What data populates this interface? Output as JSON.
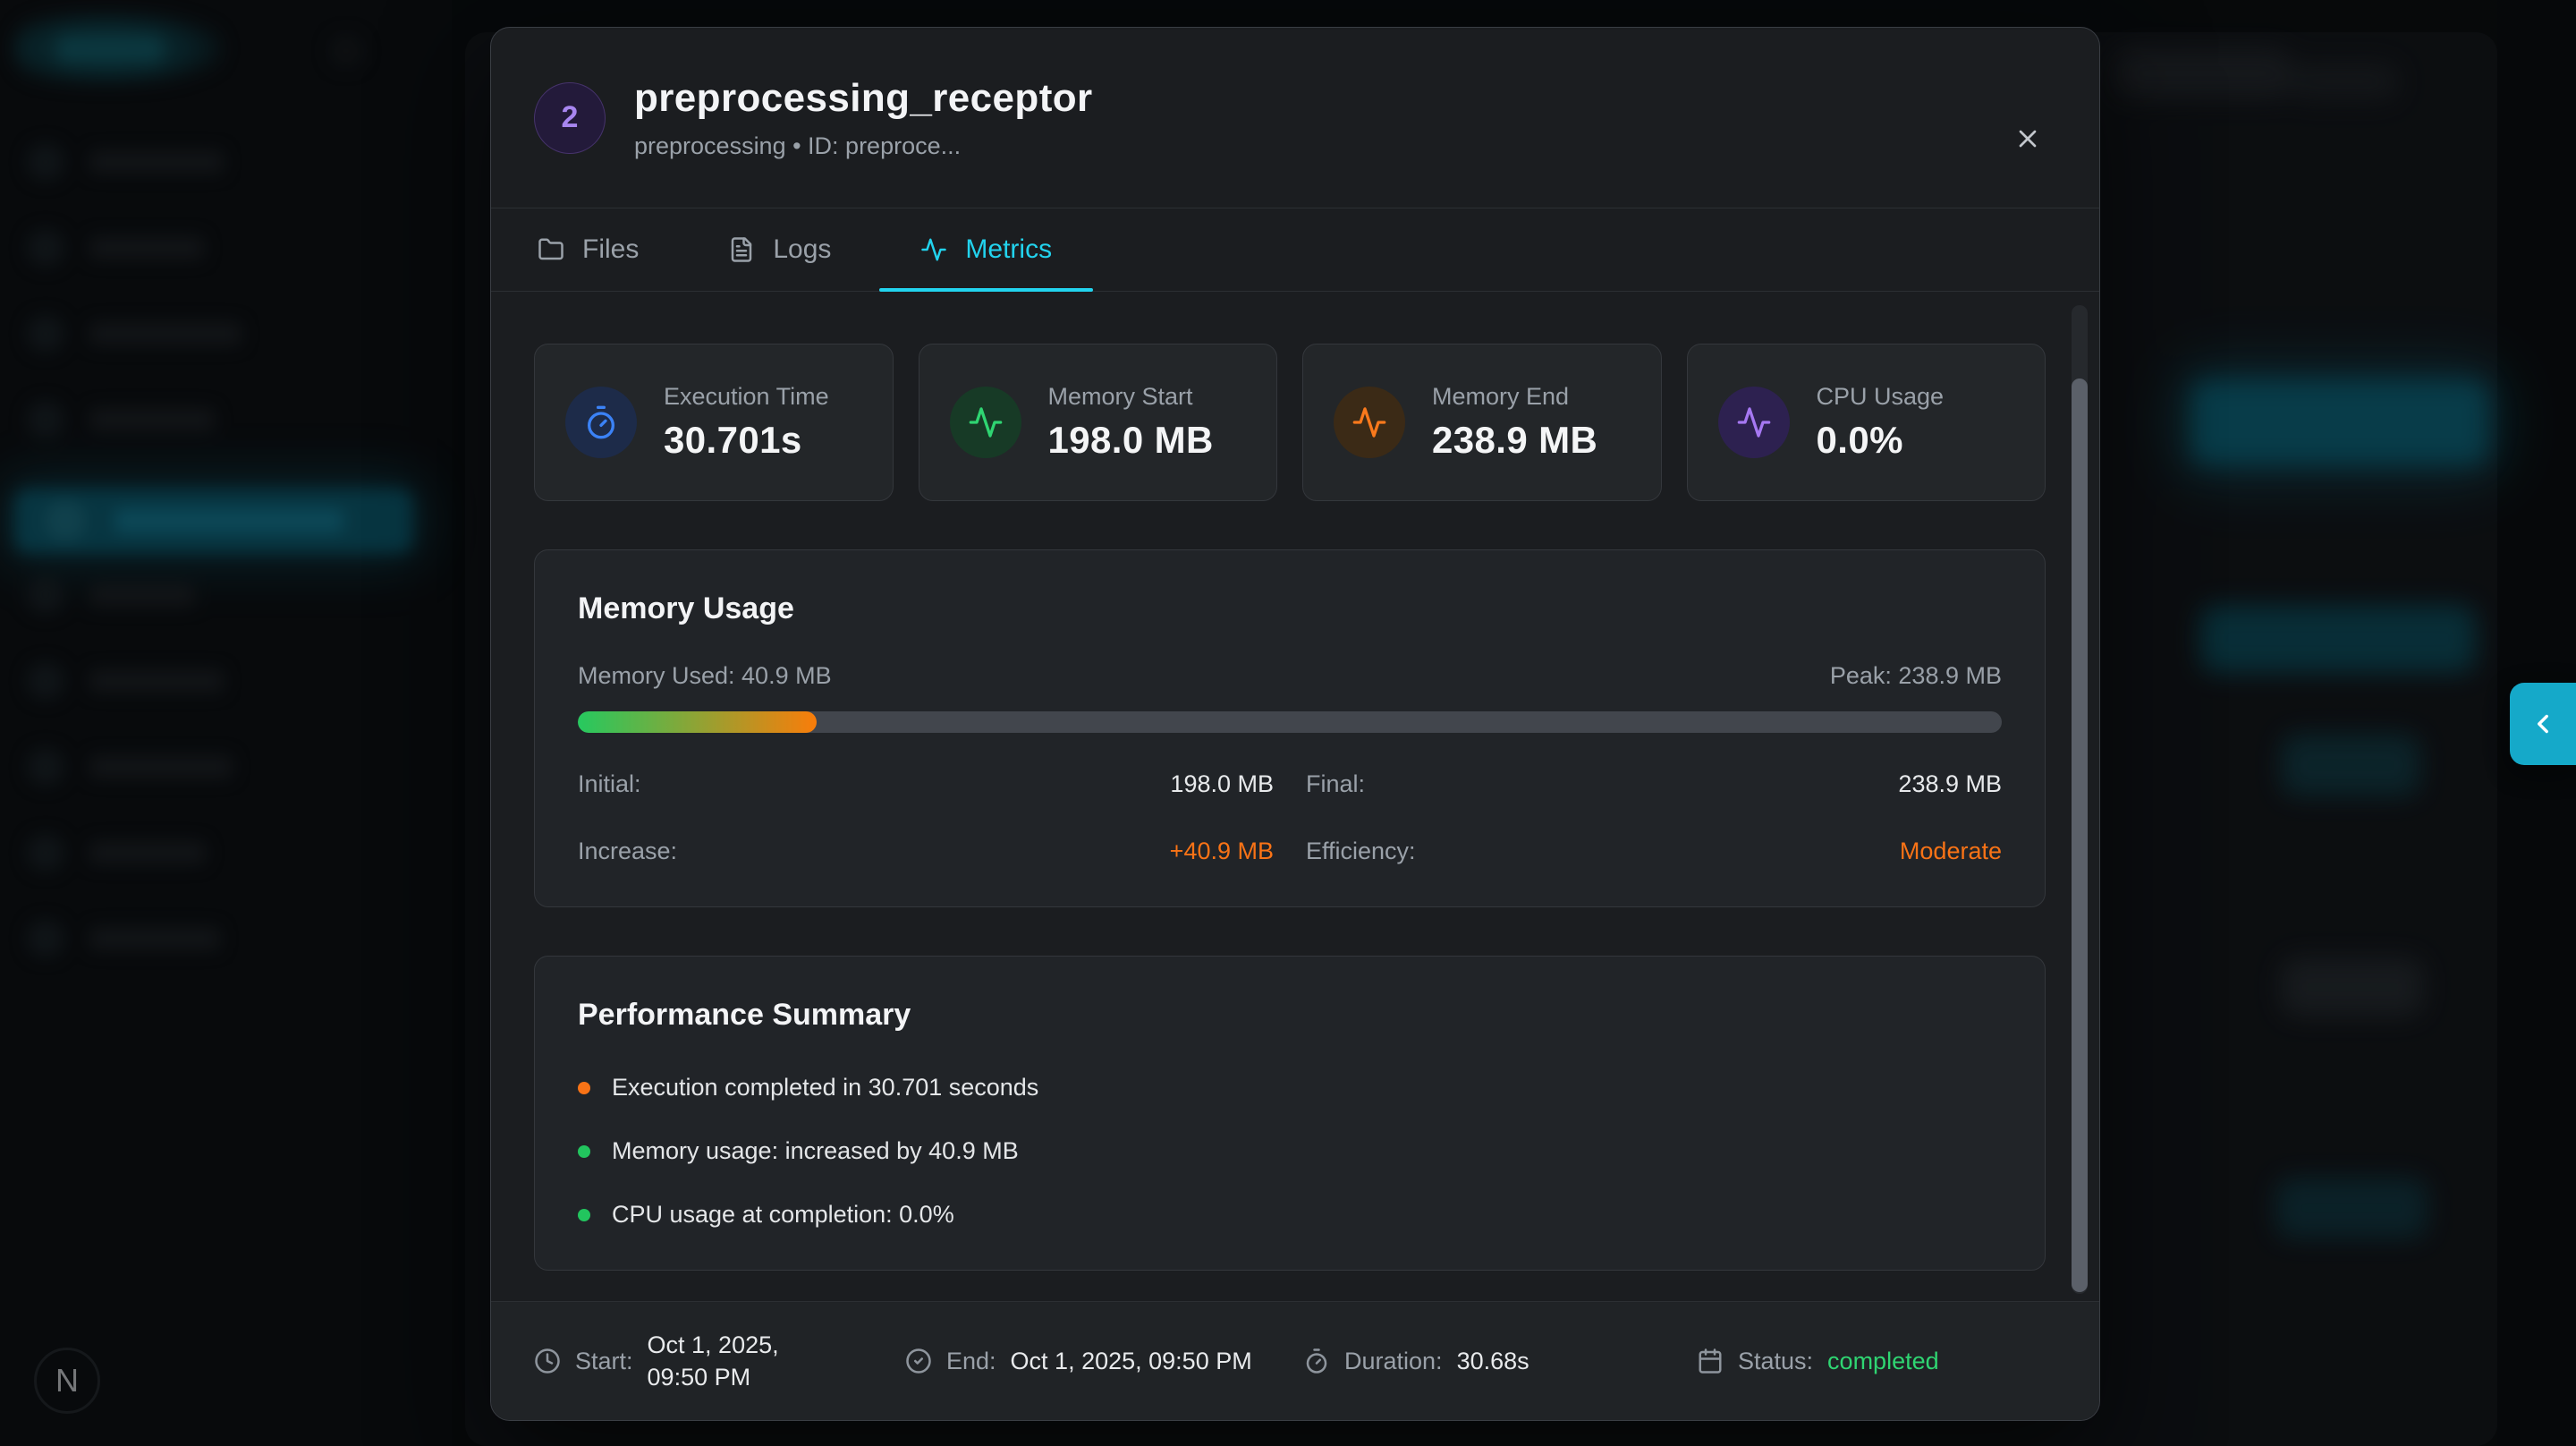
{
  "theme": {
    "accent": "#22d3ee",
    "edge_tab_bg": "#15a9c9"
  },
  "sidebar": {
    "avatar_letter": "N"
  },
  "modal": {
    "badge": "2",
    "title": "preprocessing_receptor",
    "subtitle": "preprocessing • ID: preproce...",
    "tabs": [
      {
        "label": "Files"
      },
      {
        "label": "Logs"
      },
      {
        "label": "Metrics",
        "color": "#22d3ee"
      }
    ],
    "cards": [
      {
        "label": "Execution Time",
        "value": "30.701s",
        "icon": "timer-icon",
        "icon_color": "#3b82f6",
        "icon_bg": "#1d2b49"
      },
      {
        "label": "Memory Start",
        "value": "198.0 MB",
        "icon": "activity-icon",
        "icon_color": "#2fd572",
        "icon_bg": "#173a26"
      },
      {
        "label": "Memory End",
        "value": "238.9 MB",
        "icon": "activity-icon",
        "icon_color": "#f9791c",
        "icon_bg": "#3b2a16"
      },
      {
        "label": "CPU Usage",
        "value": "0.0%",
        "icon": "activity-icon",
        "icon_color": "#a678f2",
        "icon_bg": "#2d2150"
      }
    ],
    "memory_usage": {
      "title": "Memory Usage",
      "used": "Memory Used: 40.9 MB",
      "peak": "Peak: 238.9 MB",
      "progress_percent": 16.8,
      "bar_colors": [
        "#26c95f",
        "#f97d0a"
      ],
      "rows": [
        {
          "label": "Initial:",
          "value": "198.0 MB",
          "color": "#e8eaec"
        },
        {
          "label": "Final:",
          "value": "238.9 MB",
          "color": "#e8eaec"
        },
        {
          "label": "Increase:",
          "value": "+40.9 MB",
          "color": "#f97316"
        },
        {
          "label": "Efficiency:",
          "value": "Moderate",
          "color": "#f97316"
        }
      ]
    },
    "performance": {
      "title": "Performance Summary",
      "items": [
        {
          "text": "Execution completed in 30.701 seconds",
          "dot": "#f97316"
        },
        {
          "text": "Memory usage: increased by 40.9 MB",
          "dot": "#22c55e"
        },
        {
          "text": "CPU usage at completion: 0.0%",
          "dot": "#22c55e"
        }
      ]
    },
    "footer": [
      {
        "label": "Start:",
        "value": "Oct 1, 2025, 09:50 PM",
        "color": "#e8eaec"
      },
      {
        "label": "End:",
        "value": "Oct 1, 2025, 09:50 PM",
        "color": "#e8eaec"
      },
      {
        "label": "Duration:",
        "value": "30.68s",
        "color": "#e8eaec"
      },
      {
        "label": "Status:",
        "value": "completed",
        "color": "#2fd572"
      }
    ]
  }
}
